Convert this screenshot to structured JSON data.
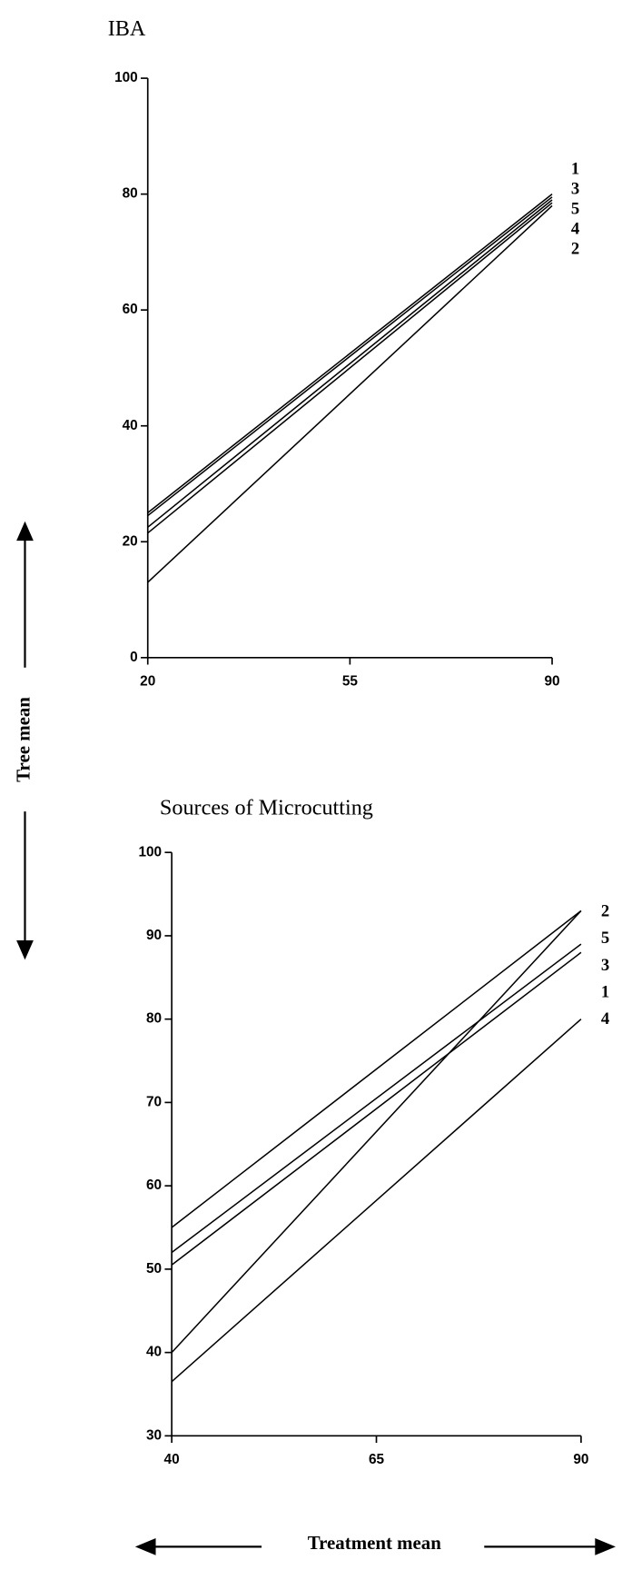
{
  "chart_data": [
    {
      "type": "line",
      "title": "IBA",
      "x": [
        20,
        90
      ],
      "series": [
        {
          "name": "1",
          "color": "#000000",
          "values": [
            25,
            80
          ]
        },
        {
          "name": "3",
          "color": "#000000",
          "values": [
            24.5,
            79.5
          ]
        },
        {
          "name": "5",
          "color": "#000000",
          "values": [
            22.5,
            79
          ]
        },
        {
          "name": "4",
          "color": "#000000",
          "values": [
            21.5,
            78.5
          ]
        },
        {
          "name": "2",
          "color": "#000000",
          "values": [
            13,
            78
          ]
        }
      ],
      "xlim": [
        20,
        90
      ],
      "xticks": [
        20,
        55,
        90
      ],
      "ylim": [
        0,
        100
      ],
      "yticks": [
        0,
        20,
        40,
        60,
        80,
        100
      ]
    },
    {
      "type": "line",
      "title": "Sources of Microcutting",
      "x": [
        40,
        90
      ],
      "series": [
        {
          "name": "2",
          "color": "#000000",
          "values": [
            40,
            93
          ]
        },
        {
          "name": "5",
          "color": "#000000",
          "values": [
            52,
            89
          ]
        },
        {
          "name": "3",
          "color": "#000000",
          "values": [
            50.5,
            88
          ]
        },
        {
          "name": "1",
          "color": "#000000",
          "values": [
            55,
            93
          ]
        },
        {
          "name": "4",
          "color": "#000000",
          "values": [
            36.5,
            80
          ]
        }
      ],
      "xlim": [
        40,
        90
      ],
      "xticks": [
        40,
        65,
        90
      ],
      "ylim": [
        30,
        100
      ],
      "yticks": [
        30,
        40,
        50,
        60,
        70,
        80,
        90,
        100
      ]
    }
  ],
  "axis_labels": {
    "y": "Tree mean",
    "x": "Treatment mean"
  }
}
